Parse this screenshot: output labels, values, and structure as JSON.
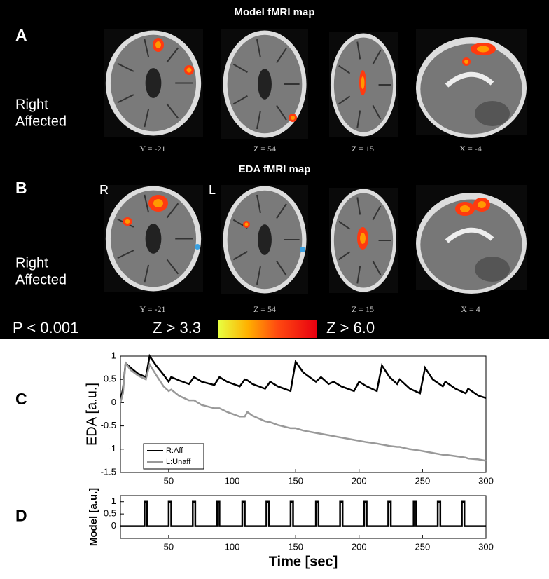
{
  "panels": [
    {
      "label": "A",
      "title": "Model fMRI map",
      "side_label": [
        "Right",
        "Affected"
      ],
      "coords": [
        "Y = -21",
        "Z = 54",
        "Z = 15",
        "X = -4"
      ]
    },
    {
      "label": "B",
      "title": "EDA fMRI map",
      "orientation": [
        "R",
        "L"
      ],
      "side_label": [
        "Right",
        "Affected"
      ],
      "coords": [
        "Y = -21",
        "Z = 54",
        "Z = 15",
        "X = 4"
      ]
    }
  ],
  "colorbar": {
    "threshold": "P < 0.001",
    "min_label": "Z > 3.3",
    "max_label": "Z > 6.0"
  },
  "chart_data": [
    {
      "type": "line",
      "panel_label": "C",
      "ylabel": "EDA [a.u.]",
      "x": [
        12,
        14,
        16,
        20,
        26,
        32,
        35,
        40,
        46,
        50,
        52,
        58,
        66,
        70,
        76,
        86,
        90,
        96,
        106,
        110,
        112,
        116,
        126,
        130,
        136,
        146,
        150,
        156,
        166,
        170,
        176,
        180,
        186,
        196,
        200,
        206,
        214,
        218,
        224,
        230,
        232,
        240,
        248,
        252,
        258,
        266,
        268,
        276,
        284,
        286,
        294,
        300
      ],
      "series": [
        {
          "name": "R:Aff",
          "color": "#000000",
          "values": [
            0.05,
            0.3,
            0.85,
            0.75,
            0.62,
            0.55,
            1.0,
            0.8,
            0.6,
            0.45,
            0.55,
            0.48,
            0.4,
            0.55,
            0.45,
            0.38,
            0.55,
            0.45,
            0.35,
            0.5,
            0.48,
            0.4,
            0.3,
            0.45,
            0.35,
            0.25,
            0.88,
            0.65,
            0.45,
            0.55,
            0.4,
            0.45,
            0.35,
            0.25,
            0.45,
            0.35,
            0.25,
            0.8,
            0.55,
            0.4,
            0.5,
            0.3,
            0.2,
            0.75,
            0.5,
            0.35,
            0.45,
            0.3,
            0.2,
            0.3,
            0.15,
            0.1
          ]
        },
        {
          "name": "L:Unaff",
          "color": "#999999",
          "values": [
            0.0,
            0.2,
            0.85,
            0.7,
            0.58,
            0.5,
            0.82,
            0.6,
            0.35,
            0.25,
            0.28,
            0.15,
            0.05,
            0.05,
            -0.05,
            -0.12,
            -0.12,
            -0.2,
            -0.3,
            -0.3,
            -0.2,
            -0.28,
            -0.4,
            -0.42,
            -0.48,
            -0.55,
            -0.55,
            -0.6,
            -0.65,
            -0.67,
            -0.7,
            -0.72,
            -0.75,
            -0.8,
            -0.82,
            -0.85,
            -0.88,
            -0.9,
            -0.93,
            -0.95,
            -0.95,
            -1.0,
            -1.03,
            -1.05,
            -1.08,
            -1.12,
            -1.12,
            -1.15,
            -1.18,
            -1.2,
            -1.22,
            -1.25
          ]
        }
      ],
      "xlim": [
        12,
        300
      ],
      "xticks": [
        50,
        100,
        150,
        200,
        250,
        300
      ],
      "ylim": [
        -1.5,
        1
      ],
      "yticks": [
        1,
        0.5,
        0,
        -0.5,
        -1,
        -1.5
      ],
      "legend": "lower left"
    },
    {
      "type": "line",
      "panel_label": "D",
      "ylabel": "Model [a.u.]",
      "xlabel": "Time [sec]",
      "x": [
        12,
        31,
        31,
        33,
        33,
        50,
        50,
        52,
        52,
        69,
        69,
        71,
        71,
        88,
        88,
        90,
        90,
        108,
        108,
        110,
        110,
        127,
        127,
        129,
        129,
        146,
        146,
        148,
        148,
        166,
        166,
        168,
        168,
        185,
        185,
        187,
        187,
        204,
        204,
        206,
        206,
        223,
        223,
        225,
        225,
        243,
        243,
        245,
        245,
        262,
        262,
        264,
        264,
        281,
        281,
        283,
        283,
        300
      ],
      "series": [
        {
          "color": "#000000",
          "values": [
            0,
            0,
            1,
            1,
            0,
            0,
            1,
            1,
            0,
            0,
            1,
            1,
            0,
            0,
            1,
            1,
            0,
            0,
            1,
            1,
            0,
            0,
            1,
            1,
            0,
            0,
            1,
            1,
            0,
            0,
            1,
            1,
            0,
            0,
            1,
            1,
            0,
            0,
            1,
            1,
            0,
            0,
            1,
            1,
            0,
            0,
            1,
            1,
            0,
            0,
            1,
            1,
            0,
            0,
            1,
            1,
            0,
            0
          ]
        }
      ],
      "xlim": [
        12,
        300
      ],
      "xticks": [
        50,
        100,
        150,
        200,
        250,
        300
      ],
      "ylim": [
        -0.5,
        1.25
      ],
      "yticks": [
        1,
        0.5,
        0
      ]
    }
  ]
}
